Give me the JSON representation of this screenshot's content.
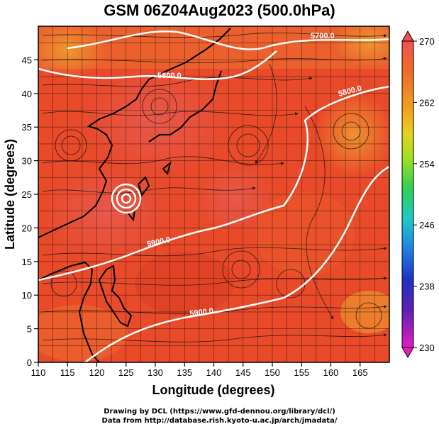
{
  "title": "GSM 06Z04Aug2023 (500.0hPa)",
  "axes": {
    "xlabel": "Longitude (degrees)",
    "ylabel": "Latitude  (degrees)",
    "x_ticks": [
      "110",
      "115",
      "120",
      "125",
      "130",
      "135",
      "140",
      "145",
      "150",
      "155",
      "160",
      "165"
    ],
    "y_ticks": [
      "0",
      "5",
      "10",
      "15",
      "20",
      "25",
      "30",
      "35",
      "40",
      "45"
    ]
  },
  "colorbar": {
    "ticks": [
      "270",
      "262",
      "254",
      "246",
      "238",
      "230"
    ],
    "colors": [
      "#e02020",
      "#f07020",
      "#f0c020",
      "#c0e020",
      "#40d060",
      "#20c0c0",
      "#2080e0",
      "#2030c0",
      "#6020c0",
      "#e020c0"
    ]
  },
  "contours": [
    {
      "label": "5700.0"
    },
    {
      "label": "5800.0"
    },
    {
      "label": "5800.0"
    },
    {
      "label": "5900.0"
    },
    {
      "label": "5900.0"
    }
  ],
  "credits": {
    "line1": "Drawing by DCL (https://www.gfd-dennou.org/library/dcl/)",
    "line2": "Data from http://database.rish.kyoto-u.ac.jp/arch/jmadata/"
  }
}
